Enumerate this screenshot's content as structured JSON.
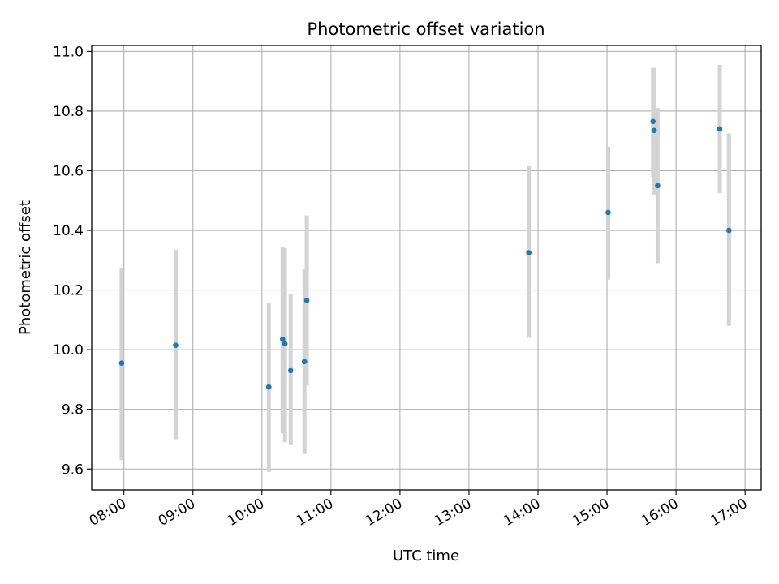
{
  "chart_data": {
    "type": "scatter",
    "title": "Photometric offset variation",
    "xlabel": "UTC time",
    "ylabel": "Photometric offset",
    "grid": true,
    "x_ticks": [
      "08:00",
      "09:00",
      "10:00",
      "11:00",
      "12:00",
      "13:00",
      "14:00",
      "15:00",
      "16:00",
      "17:00"
    ],
    "x_tick_hours": [
      8,
      9,
      10,
      11,
      12,
      13,
      14,
      15,
      16,
      17
    ],
    "y_ticks": [
      "9.6",
      "9.8",
      "10.0",
      "10.2",
      "10.4",
      "10.6",
      "10.8",
      "11.0"
    ],
    "y_tick_values": [
      9.6,
      9.8,
      10.0,
      10.2,
      10.4,
      10.6,
      10.8,
      11.0
    ],
    "xlim": [
      "07:32",
      "17:14"
    ],
    "ylim": [
      9.53,
      11.02
    ],
    "colors": {
      "points": "#1f77b4",
      "error_bars": "#d3d3d3",
      "grid": "#b0b0b0"
    },
    "points": [
      {
        "x": "07:58",
        "y": 9.955,
        "err_low": 9.63,
        "err_high": 10.275
      },
      {
        "x": "08:45",
        "y": 10.015,
        "err_low": 9.7,
        "err_high": 10.335
      },
      {
        "x": "10:06",
        "y": 9.875,
        "err_low": 9.59,
        "err_high": 10.155
      },
      {
        "x": "10:18",
        "y": 10.035,
        "err_low": 9.72,
        "err_high": 10.345
      },
      {
        "x": "10:20",
        "y": 10.02,
        "err_low": 9.69,
        "err_high": 10.34
      },
      {
        "x": "10:25",
        "y": 9.93,
        "err_low": 9.68,
        "err_high": 10.185
      },
      {
        "x": "10:37",
        "y": 9.96,
        "err_low": 9.65,
        "err_high": 10.27
      },
      {
        "x": "10:39",
        "y": 10.165,
        "err_low": 9.88,
        "err_high": 10.45
      },
      {
        "x": "13:52",
        "y": 10.325,
        "err_low": 10.04,
        "err_high": 10.615
      },
      {
        "x": "15:01",
        "y": 10.46,
        "err_low": 10.235,
        "err_high": 10.68
      },
      {
        "x": "15:40",
        "y": 10.765,
        "err_low": 10.58,
        "err_high": 10.945
      },
      {
        "x": "15:41",
        "y": 10.735,
        "err_low": 10.52,
        "err_high": 10.945
      },
      {
        "x": "15:44",
        "y": 10.55,
        "err_low": 10.29,
        "err_high": 10.81
      },
      {
        "x": "16:38",
        "y": 10.74,
        "err_low": 10.525,
        "err_high": 10.955
      },
      {
        "x": "16:46",
        "y": 10.4,
        "err_low": 10.08,
        "err_high": 10.725
      }
    ]
  }
}
